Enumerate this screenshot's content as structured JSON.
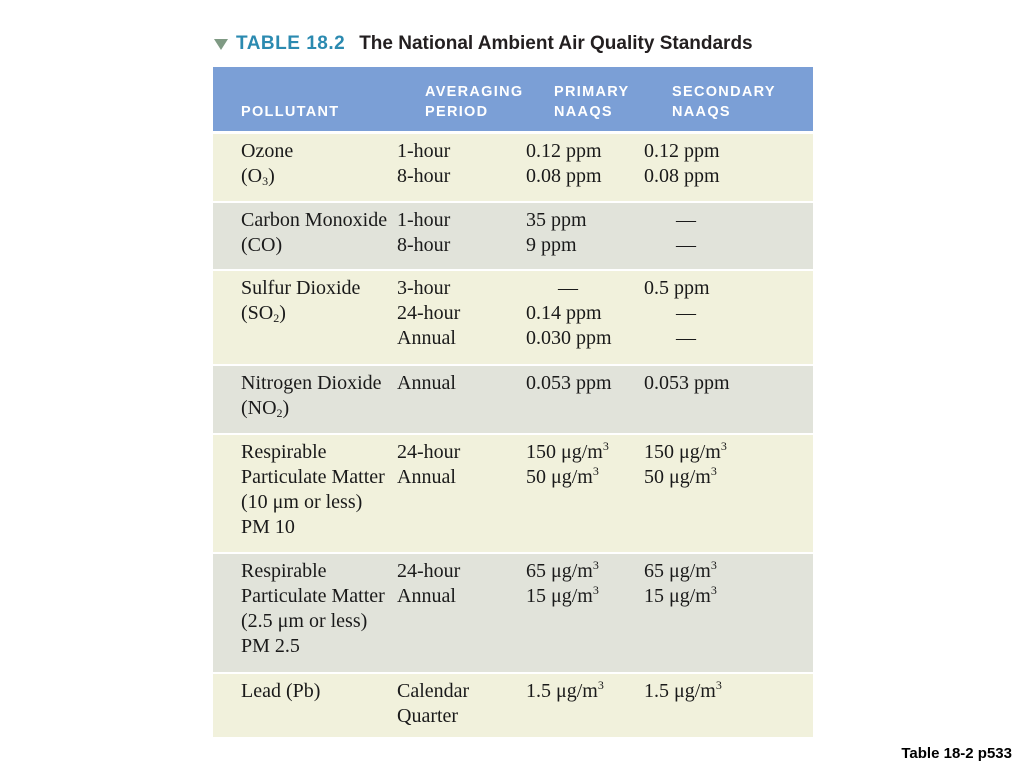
{
  "title": {
    "label": "TABLE 18.2",
    "text": "The National Ambient Air Quality Standards"
  },
  "headers": {
    "pollutant": "POLLUTANT",
    "averaging_1": "AVERAGING",
    "averaging_2": "PERIOD",
    "primary_1": "PRIMARY",
    "primary_2": "NAAQS",
    "secondary_1": "SECONDARY",
    "secondary_2": "NAAQS"
  },
  "rows": [
    {
      "pollutant": [
        "Ozone",
        "(O",
        "3",
        ")"
      ],
      "periods": [
        "1-hour",
        "8-hour"
      ],
      "primary": [
        "0.12 ppm",
        "0.08 ppm"
      ],
      "secondary": [
        "0.12 ppm",
        "0.08 ppm"
      ]
    },
    {
      "pollutant": [
        "Carbon Monoxide",
        "(CO)"
      ],
      "periods": [
        "1-hour",
        "8-hour"
      ],
      "primary": [
        "35 ppm",
        "9 ppm"
      ],
      "secondary": [
        "—",
        "—"
      ]
    },
    {
      "pollutant": [
        "Sulfur Dioxide",
        "(SO",
        "2",
        ")"
      ],
      "periods": [
        "3-hour",
        "24-hour",
        "Annual"
      ],
      "primary": [
        "—",
        "0.14 ppm",
        "0.030 ppm"
      ],
      "secondary": [
        "0.5 ppm",
        "—",
        "—"
      ]
    },
    {
      "pollutant": [
        "Nitrogen Dioxide",
        "(NO",
        "2",
        ")"
      ],
      "periods": [
        "Annual"
      ],
      "primary": [
        "0.053 ppm"
      ],
      "secondary": [
        "0.053 ppm"
      ]
    },
    {
      "pollutant": [
        "Respirable",
        "Particulate Matter",
        "(10 μm or less)",
        "PM 10"
      ],
      "periods": [
        "24-hour",
        "Annual"
      ],
      "primary": [
        "150 μg/m",
        "3",
        "50 μg/m",
        "3"
      ],
      "secondary": [
        "150 μg/m",
        "3",
        "50 μg/m",
        "3"
      ]
    },
    {
      "pollutant": [
        "Respirable",
        "Particulate Matter",
        "(2.5 μm or less)",
        "PM 2.5"
      ],
      "periods": [
        "24-hour",
        "Annual"
      ],
      "primary": [
        "65 μg/m",
        "3",
        "15 μg/m",
        "3"
      ],
      "secondary": [
        "65 μg/m",
        "3",
        "15 μg/m",
        "3"
      ]
    },
    {
      "pollutant": [
        "Lead (Pb)"
      ],
      "periods": [
        "Calendar",
        "Quarter"
      ],
      "primary": [
        "1.5 μg/m",
        "3"
      ],
      "secondary": [
        "1.5 μg/m",
        "3"
      ]
    }
  ],
  "footnote": "Table 18-2 p533",
  "colors": {
    "header_bg": "#7b9fd6",
    "title_label": "#2b8ab0",
    "row_light": "#f1f1dc",
    "row_dark": "#e1e3da"
  }
}
